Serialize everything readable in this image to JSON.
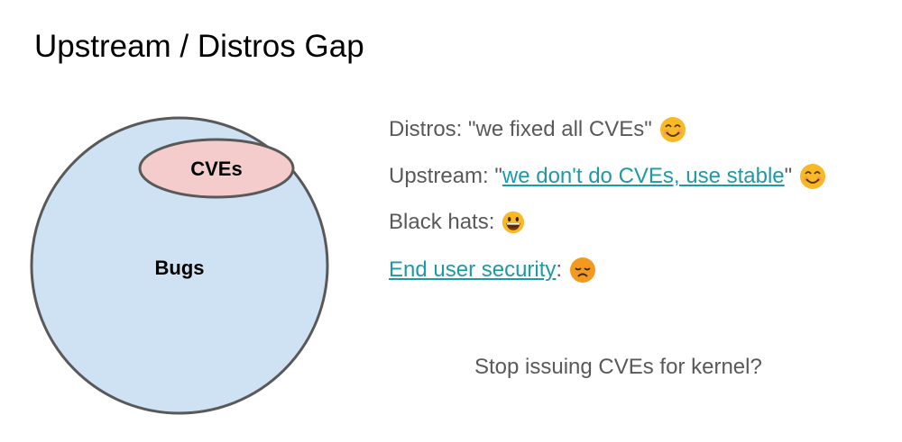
{
  "title": "Upstream / Distros Gap",
  "diagram": {
    "outer_label": "Bugs",
    "inner_label": "CVEs",
    "colors": {
      "outer_fill": "#cfe2f3",
      "inner_fill": "#f4cccc",
      "stroke": "#595959"
    }
  },
  "lines": [
    {
      "prefix": "Distros: \"we fixed all CVEs\"",
      "emoji": "smiling-face-icon"
    },
    {
      "prefix": "Upstream: \"",
      "link": "we don't do CVEs, use stable",
      "suffix": "\"",
      "emoji": "smiling-face-icon"
    },
    {
      "prefix": "Black hats:",
      "emoji": "grinning-face-icon"
    },
    {
      "link": "End user security",
      "suffix": ":",
      "emoji": "disappointed-face-icon"
    }
  ],
  "question": "Stop issuing CVEs for kernel?",
  "colors": {
    "link": "#1a9ba6",
    "text": "#595959"
  }
}
